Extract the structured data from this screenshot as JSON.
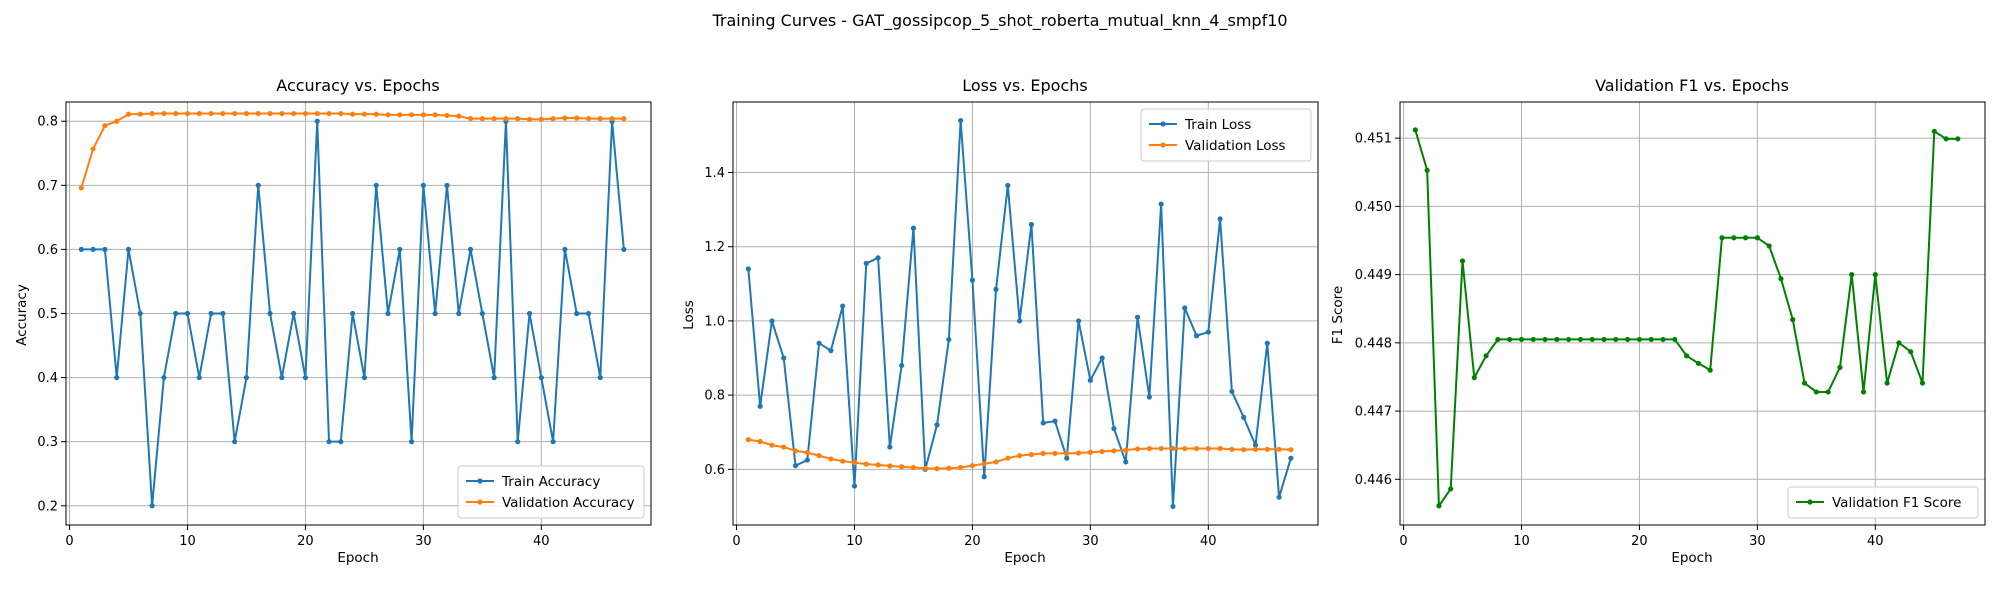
{
  "figure": {
    "title": "Training Curves - GAT_gossipcop_5_shot_roberta_mutual_knn_4_smpf10"
  },
  "chart_data": [
    {
      "type": "line",
      "title": "Accuracy vs. Epochs",
      "xlabel": "Epoch",
      "ylabel": "Accuracy",
      "xlim": [
        -0.3,
        49.3
      ],
      "ylim": [
        0.17,
        0.83
      ],
      "xticks": [
        0,
        10,
        20,
        30,
        40
      ],
      "yticks": [
        0.2,
        0.3,
        0.4,
        0.5,
        0.6,
        0.7,
        0.8
      ],
      "ytick_labels": [
        "0.2",
        "0.3",
        "0.4",
        "0.5",
        "0.6",
        "0.7",
        "0.8"
      ],
      "grid": true,
      "legend": "lower-right",
      "x": [
        1,
        2,
        3,
        4,
        5,
        6,
        7,
        8,
        9,
        10,
        11,
        12,
        13,
        14,
        15,
        16,
        17,
        18,
        19,
        20,
        21,
        22,
        23,
        24,
        25,
        26,
        27,
        28,
        29,
        30,
        31,
        32,
        33,
        34,
        35,
        36,
        37,
        38,
        39,
        40,
        41,
        42,
        43,
        44,
        45,
        46,
        47
      ],
      "series": [
        {
          "name": "Train Accuracy",
          "color": "#1f77b4",
          "values": [
            0.6,
            0.6,
            0.6,
            0.4,
            0.6,
            0.5,
            0.2,
            0.4,
            0.5,
            0.5,
            0.4,
            0.5,
            0.5,
            0.3,
            0.4,
            0.7,
            0.5,
            0.4,
            0.5,
            0.4,
            0.8,
            0.3,
            0.3,
            0.5,
            0.4,
            0.7,
            0.5,
            0.6,
            0.3,
            0.7,
            0.5,
            0.7,
            0.5,
            0.6,
            0.5,
            0.4,
            0.8,
            0.3,
            0.5,
            0.4,
            0.3,
            0.6,
            0.5,
            0.5,
            0.4,
            0.8,
            0.6
          ]
        },
        {
          "name": "Validation Accuracy",
          "color": "#ff7f0e",
          "values": [
            0.696,
            0.757,
            0.793,
            0.8,
            0.811,
            0.811,
            0.812,
            0.812,
            0.812,
            0.812,
            0.812,
            0.812,
            0.812,
            0.812,
            0.812,
            0.812,
            0.812,
            0.812,
            0.812,
            0.812,
            0.812,
            0.812,
            0.812,
            0.811,
            0.811,
            0.811,
            0.81,
            0.81,
            0.81,
            0.81,
            0.81,
            0.809,
            0.808,
            0.804,
            0.804,
            0.804,
            0.804,
            0.804,
            0.803,
            0.803,
            0.804,
            0.805,
            0.805,
            0.804,
            0.804,
            0.804,
            0.804
          ]
        }
      ]
    },
    {
      "type": "line",
      "title": "Loss vs. Epochs",
      "xlabel": "Epoch",
      "ylabel": "Loss",
      "xlim": [
        -0.3,
        49.3
      ],
      "ylim": [
        0.45,
        1.59
      ],
      "xticks": [
        0,
        10,
        20,
        30,
        40
      ],
      "yticks": [
        0.6,
        0.8,
        1.0,
        1.2,
        1.4
      ],
      "ytick_labels": [
        "0.6",
        "0.8",
        "1.0",
        "1.2",
        "1.4"
      ],
      "grid": true,
      "legend": "top-right",
      "x": [
        1,
        2,
        3,
        4,
        5,
        6,
        7,
        8,
        9,
        10,
        11,
        12,
        13,
        14,
        15,
        16,
        17,
        18,
        19,
        20,
        21,
        22,
        23,
        24,
        25,
        26,
        27,
        28,
        29,
        30,
        31,
        32,
        33,
        34,
        35,
        36,
        37,
        38,
        39,
        40,
        41,
        42,
        43,
        44,
        45,
        46,
        47
      ],
      "series": [
        {
          "name": "Train Loss",
          "color": "#1f77b4",
          "values": [
            1.14,
            0.77,
            1.0,
            0.9,
            0.61,
            0.625,
            0.94,
            0.92,
            1.04,
            0.555,
            1.155,
            1.17,
            0.66,
            0.88,
            1.25,
            0.6,
            0.72,
            0.95,
            1.54,
            1.11,
            0.58,
            1.085,
            1.365,
            1.0,
            1.26,
            0.725,
            0.73,
            0.63,
            1.0,
            0.84,
            0.9,
            0.71,
            0.62,
            1.01,
            0.795,
            1.315,
            0.5,
            1.035,
            0.96,
            0.97,
            1.275,
            0.81,
            0.74,
            0.665,
            0.94,
            0.525,
            0.63
          ]
        },
        {
          "name": "Validation Loss",
          "color": "#ff7f0e",
          "values": [
            0.68,
            0.675,
            0.665,
            0.66,
            0.65,
            0.645,
            0.637,
            0.628,
            0.622,
            0.618,
            0.614,
            0.612,
            0.609,
            0.607,
            0.605,
            0.603,
            0.602,
            0.603,
            0.605,
            0.61,
            0.615,
            0.62,
            0.63,
            0.637,
            0.64,
            0.643,
            0.643,
            0.643,
            0.644,
            0.646,
            0.648,
            0.65,
            0.652,
            0.655,
            0.656,
            0.656,
            0.656,
            0.656,
            0.656,
            0.656,
            0.656,
            0.654,
            0.653,
            0.654,
            0.654,
            0.654,
            0.653
          ]
        }
      ]
    },
    {
      "type": "line",
      "title": "Validation F1 vs. Epochs",
      "xlabel": "Epoch",
      "ylabel": "F1 Score",
      "xlim": [
        -0.3,
        49.3
      ],
      "ylim": [
        0.44533,
        0.45153
      ],
      "xticks": [
        0,
        10,
        20,
        30,
        40
      ],
      "yticks": [
        0.446,
        0.447,
        0.448,
        0.449,
        0.45,
        0.451
      ],
      "ytick_labels": [
        "0.446",
        "0.447",
        "0.448",
        "0.449",
        "0.450",
        "0.451"
      ],
      "grid": true,
      "legend": "lower-right",
      "x": [
        1,
        2,
        3,
        4,
        5,
        6,
        7,
        8,
        9,
        10,
        11,
        12,
        13,
        14,
        15,
        16,
        17,
        18,
        19,
        20,
        21,
        22,
        23,
        24,
        25,
        26,
        27,
        28,
        29,
        30,
        31,
        32,
        33,
        34,
        35,
        36,
        37,
        38,
        39,
        40,
        41,
        42,
        43,
        44,
        45,
        46,
        47
      ],
      "series": [
        {
          "name": "Validation F1 Score",
          "color": "#008000",
          "values": [
            0.45112,
            0.45053,
            0.44561,
            0.44586,
            0.4492,
            0.44749,
            0.44781,
            0.44805,
            0.44805,
            0.44805,
            0.44805,
            0.44805,
            0.44805,
            0.44805,
            0.44805,
            0.44805,
            0.44805,
            0.44805,
            0.44805,
            0.44805,
            0.44805,
            0.44805,
            0.44805,
            0.44781,
            0.4477,
            0.4476,
            0.44954,
            0.44954,
            0.44954,
            0.44954,
            0.44942,
            0.44894,
            0.44834,
            0.44741,
            0.44728,
            0.44728,
            0.44764,
            0.449,
            0.44728,
            0.449,
            0.44741,
            0.448,
            0.44787,
            0.44741,
            0.4511,
            0.45099,
            0.45099
          ]
        }
      ]
    }
  ]
}
